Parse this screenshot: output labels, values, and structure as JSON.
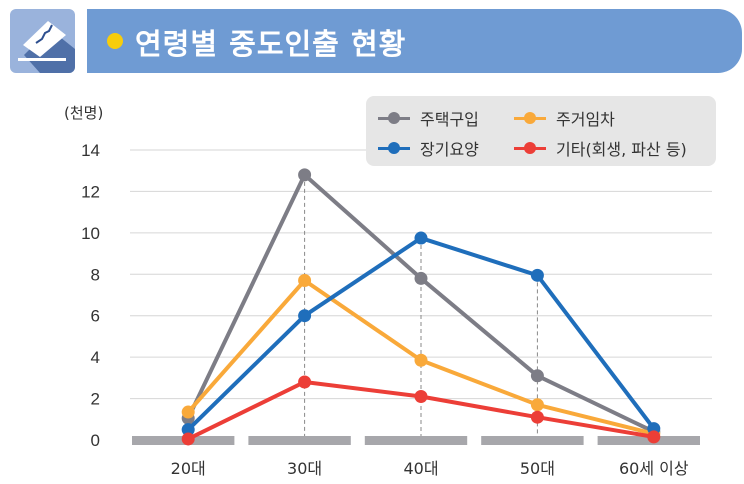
{
  "header": {
    "title": "연령별 중도인출 현황",
    "icon": "money-deposit-icon"
  },
  "chart_data": {
    "type": "line",
    "title": "연령별 중도인출 현황",
    "ylabel": "(천명)",
    "ylim": [
      0,
      14
    ],
    "yticks": [
      0,
      2,
      4,
      6,
      8,
      10,
      12,
      14
    ],
    "categories": [
      "20대",
      "30대",
      "40대",
      "50대",
      "60세 이상"
    ],
    "grid": true,
    "legend_position": "top-right",
    "series": [
      {
        "name": "주택구입",
        "color": "#7d7d86",
        "values": [
          1.05,
          12.8,
          7.8,
          3.1,
          0.4
        ]
      },
      {
        "name": "주거임차",
        "color": "#f9a93a",
        "values": [
          1.35,
          7.7,
          3.85,
          1.7,
          0.3
        ]
      },
      {
        "name": "장기요양",
        "color": "#1f6ebb",
        "values": [
          0.5,
          6.0,
          9.75,
          7.95,
          0.55
        ]
      },
      {
        "name": "기타(회생, 파산 등)",
        "color": "#ec3e37",
        "values": [
          0.05,
          2.8,
          2.1,
          1.1,
          0.15
        ]
      }
    ]
  }
}
